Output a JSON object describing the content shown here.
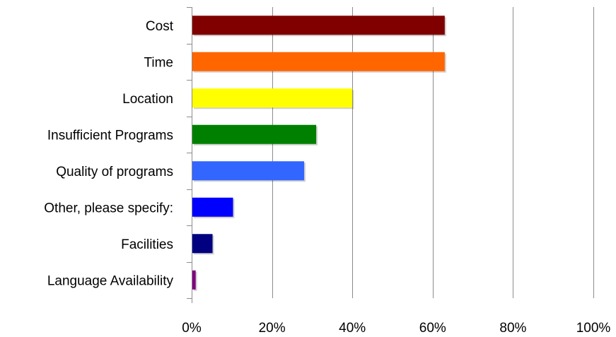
{
  "chart_data": {
    "type": "bar",
    "orientation": "horizontal",
    "title": "",
    "xlabel": "",
    "ylabel": "",
    "categories": [
      "Cost",
      "Time",
      "Location",
      "Insufficient Programs",
      "Quality of programs",
      "Other, please specify:",
      "Facilities",
      "Language Availability"
    ],
    "values": [
      63,
      63,
      40,
      31,
      28,
      10.3,
      5.2,
      1
    ],
    "colors": [
      "#800000",
      "#ff6600",
      "#ffff00",
      "#008000",
      "#3366ff",
      "#0000ff",
      "#000080",
      "#800080"
    ],
    "xlim": [
      0,
      100
    ],
    "ticks": [
      "0%",
      "20%",
      "40%",
      "60%",
      "80%",
      "100%"
    ],
    "tick_values": [
      0,
      20,
      40,
      60,
      80,
      100
    ],
    "grid": "vertical",
    "legend": "none"
  }
}
